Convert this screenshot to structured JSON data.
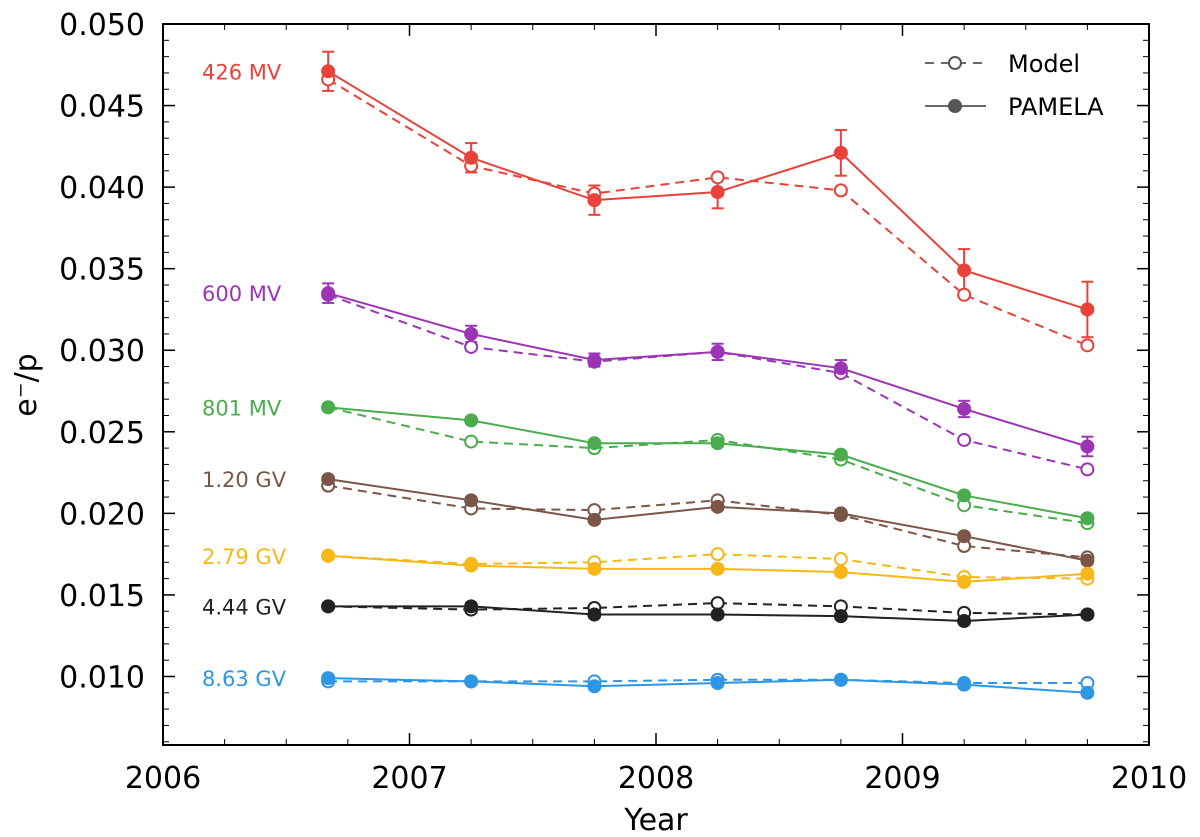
{
  "chart_data": {
    "type": "line",
    "title": "",
    "xlabel": "Year",
    "ylabel": "e⁻/p",
    "xlim": [
      2006,
      2010
    ],
    "ylim": [
      0.0058,
      0.05
    ],
    "xticks": [
      2006,
      2007,
      2008,
      2009,
      2010
    ],
    "xtick_labels": [
      "2006",
      "2007",
      "2008",
      "2009",
      "2010"
    ],
    "yticks": [
      0.01,
      0.015,
      0.02,
      0.025,
      0.03,
      0.035,
      0.04,
      0.045,
      0.05
    ],
    "ytick_labels": [
      "0.010",
      "0.015",
      "0.020",
      "0.025",
      "0.030",
      "0.035",
      "0.040",
      "0.045",
      "0.050"
    ],
    "grid": false,
    "legend_position": "top-right",
    "legend": [
      {
        "label": "Model",
        "style": "dashed-open-circle"
      },
      {
        "label": "PAMELA",
        "style": "solid-filled-circle"
      }
    ],
    "x": [
      2006.67,
      2007.25,
      2007.75,
      2008.25,
      2008.75,
      2009.25,
      2009.75
    ],
    "series": [
      {
        "name": "426 MV",
        "color": "#e8423a",
        "pamela": [
          0.0471,
          0.0418,
          0.0392,
          0.0397,
          0.0421,
          0.0349,
          0.0325
        ],
        "pamela_err": [
          0.0012,
          0.0009,
          0.0009,
          0.001,
          0.0014,
          0.0013,
          0.0017
        ],
        "model": [
          0.0466,
          0.0413,
          0.0396,
          0.0406,
          0.0398,
          0.0334,
          0.0303
        ]
      },
      {
        "name": "600 MV",
        "color": "#9b35b5",
        "pamela": [
          0.0335,
          0.031,
          0.0294,
          0.0299,
          0.0289,
          0.0264,
          0.0241
        ],
        "pamela_err": [
          0.0006,
          0.0005,
          0.0004,
          0.0005,
          0.0005,
          0.0005,
          0.0006
        ],
        "model": [
          0.0334,
          0.0302,
          0.0293,
          0.0299,
          0.0286,
          0.0245,
          0.0227
        ]
      },
      {
        "name": "801 MV",
        "color": "#4aac4e",
        "pamela": [
          0.0265,
          0.0257,
          0.0243,
          0.0243,
          0.0236,
          0.0211,
          0.0197
        ],
        "pamela_err": [
          0.0002,
          0.0002,
          0.0002,
          0.0002,
          0.0002,
          0.0002,
          0.0002
        ],
        "model": [
          0.0265,
          0.0244,
          0.024,
          0.0245,
          0.0233,
          0.0205,
          0.0194
        ]
      },
      {
        "name": "1.20 GV",
        "color": "#7b5646",
        "pamela": [
          0.0221,
          0.0208,
          0.0196,
          0.0204,
          0.02,
          0.0186,
          0.0171
        ],
        "pamela_err": [
          0.0002,
          0.0002,
          0.0002,
          0.0002,
          0.0002,
          0.0002,
          0.0002
        ],
        "model": [
          0.0217,
          0.0203,
          0.0202,
          0.0208,
          0.0199,
          0.018,
          0.0173
        ]
      },
      {
        "name": "2.79 GV",
        "color": "#f7b718",
        "pamela": [
          0.0174,
          0.0168,
          0.0166,
          0.0166,
          0.0164,
          0.0158,
          0.0163
        ],
        "pamela_err": [
          0.0002,
          0.0002,
          0.0002,
          0.0002,
          0.0002,
          0.0002,
          0.0002
        ],
        "model": [
          0.0174,
          0.0169,
          0.017,
          0.0175,
          0.0172,
          0.0161,
          0.016
        ]
      },
      {
        "name": "4.44 GV",
        "color": "#222222",
        "pamela": [
          0.0143,
          0.0143,
          0.0138,
          0.0138,
          0.0137,
          0.0134,
          0.0138
        ],
        "pamela_err": [
          0.0002,
          0.0002,
          0.0002,
          0.0002,
          0.0002,
          0.0002,
          0.0002
        ],
        "model": [
          0.0143,
          0.0141,
          0.0142,
          0.0145,
          0.0143,
          0.0139,
          0.0138
        ]
      },
      {
        "name": "8.63 GV",
        "color": "#2f96e4",
        "pamela": [
          0.0099,
          0.0097,
          0.0094,
          0.0096,
          0.0098,
          0.0095,
          0.009
        ],
        "pamela_err": [
          0.0002,
          0.0002,
          0.0002,
          0.0002,
          0.0002,
          0.0002,
          0.0002
        ],
        "model": [
          0.0097,
          0.0097,
          0.0097,
          0.0098,
          0.0098,
          0.0096,
          0.0096
        ]
      }
    ]
  }
}
